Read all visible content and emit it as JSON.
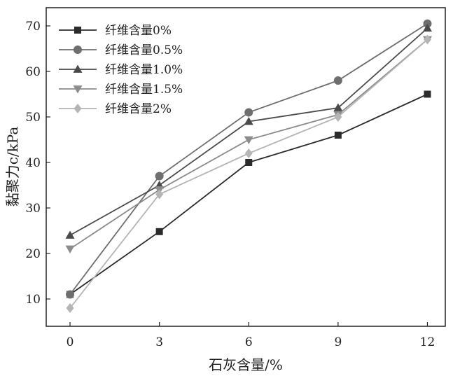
{
  "chart_data": {
    "type": "line",
    "xlabel": "石灰含量/%",
    "ylabel": "黏聚力c/kPa",
    "x": [
      0,
      3,
      6,
      9,
      12
    ],
    "xticks": [
      "0",
      "3",
      "6",
      "9",
      "12"
    ],
    "yticks": [
      "10",
      "20",
      "30",
      "40",
      "50",
      "60",
      "70"
    ],
    "xlim": [
      -0.8,
      12.6
    ],
    "ylim": [
      4,
      74
    ],
    "legend_position": "top-left",
    "grid": false,
    "series": [
      {
        "name": "纤维含量0%",
        "marker": "square",
        "color": "#2b2b2b",
        "values": [
          11,
          24.8,
          40,
          46,
          55
        ]
      },
      {
        "name": "纤维含量0.5%",
        "marker": "circle",
        "color": "#6e6e6e",
        "values": [
          11,
          37,
          51,
          58,
          70.5
        ]
      },
      {
        "name": "纤维含量1.0%",
        "marker": "triangle-up",
        "color": "#4a4a4a",
        "values": [
          24,
          35,
          49,
          52,
          69.5
        ]
      },
      {
        "name": "纤维含量1.5%",
        "marker": "triangle-down",
        "color": "#8c8c8c",
        "values": [
          21,
          34,
          45,
          50.5,
          67
        ]
      },
      {
        "name": "纤维含量2%",
        "marker": "diamond",
        "color": "#b5b5b5",
        "values": [
          8,
          33,
          42,
          50,
          67
        ]
      }
    ]
  }
}
